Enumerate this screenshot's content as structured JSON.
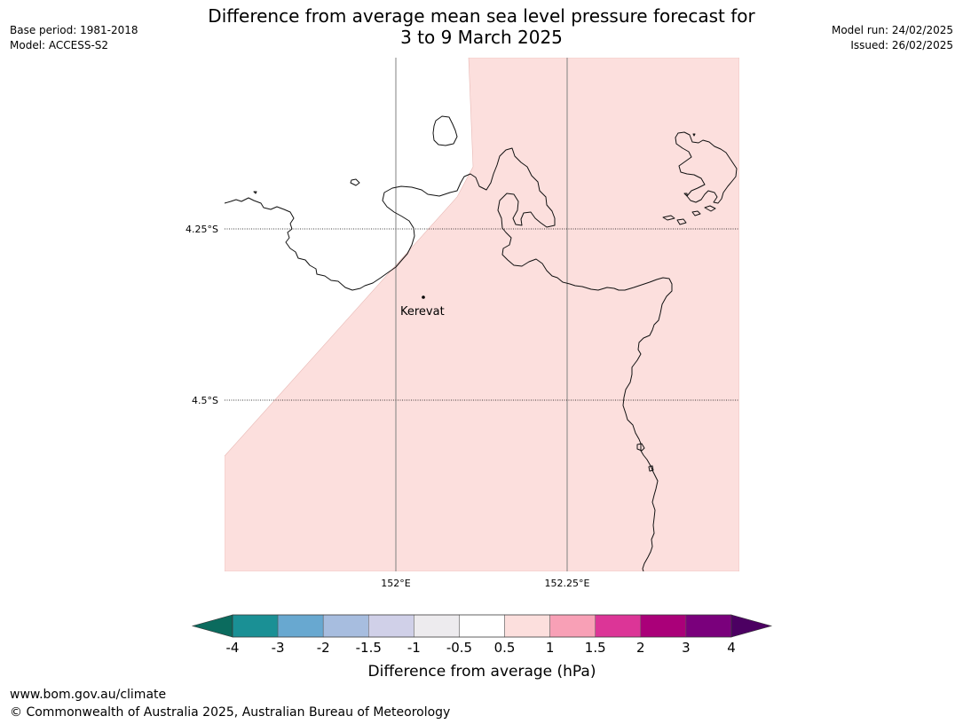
{
  "header": {
    "title_line1": "Difference from average mean sea level pressure forecast for",
    "title_line2": "3 to 9 March 2025",
    "base_period": "Base period: 1981-2018",
    "model": "Model: ACCESS-S2",
    "model_run": "Model run: 24/02/2025",
    "issued": "Issued: 26/02/2025"
  },
  "map": {
    "latitude_labels": [
      "4.25°S",
      "4.5°S"
    ],
    "longitude_labels": [
      "152°E",
      "152.25°E"
    ],
    "place": {
      "name": "Kerevat"
    },
    "anomaly_fill_color": "#fcdfdd",
    "anomaly_band": "0.5 to 1"
  },
  "legend": {
    "tick_labels": [
      "-4",
      "-3",
      "-2",
      "-1.5",
      "-1",
      "-0.5",
      "0.5",
      "1",
      "1.5",
      "2",
      "3",
      "4"
    ],
    "colors": [
      "#1a9095",
      "#68a8d0",
      "#a7bddf",
      "#d0d0e8",
      "#edebee",
      "#ffffff",
      "#fcdfdd",
      "#f8a0b6",
      "#dc3597",
      "#aa0079",
      "#7a007c"
    ],
    "under_color": "#0b6b5e",
    "over_color": "#4c0062",
    "label": "Difference from average (hPa)"
  },
  "footer": {
    "url": "www.bom.gov.au/climate",
    "copyright": "© Commonwealth of Australia 2025, Australian Bureau of Meteorology"
  }
}
